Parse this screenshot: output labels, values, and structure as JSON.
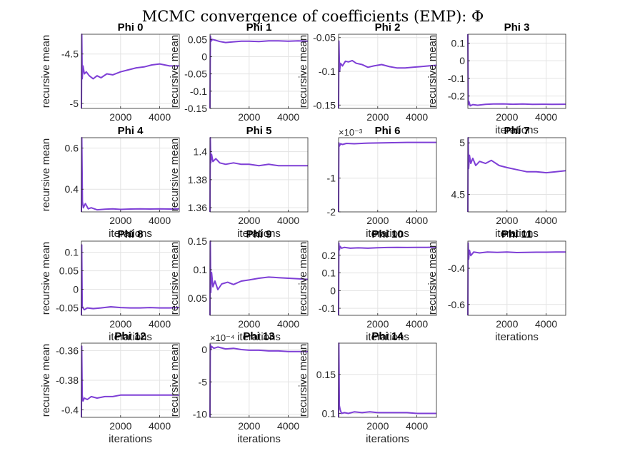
{
  "figure": {
    "suptitle": "MCMC convergence of coefficients (EMP): Φ",
    "line_color": "#7e3fd6"
  },
  "chart_data": [
    {
      "type": "line",
      "title": "Phi 0",
      "xlabel": "",
      "ylabel": "recursive mean",
      "xlim": [
        0,
        5000
      ],
      "ylim": [
        -5.05,
        -4.3
      ],
      "xticks": [
        2000,
        4000
      ],
      "yticks": [
        -5,
        -4.5
      ],
      "ytick_labels": [
        "-5",
        "-4.5"
      ],
      "exponent": "",
      "grid": true,
      "series": [
        {
          "x": [
            0,
            20,
            40,
            80,
            150,
            250,
            400,
            600,
            800,
            1000,
            1300,
            1600,
            2000,
            2400,
            2800,
            3200,
            3600,
            4000,
            4500,
            5000
          ],
          "y": [
            -5.05,
            -4.3,
            -4.75,
            -4.62,
            -4.7,
            -4.68,
            -4.72,
            -4.75,
            -4.72,
            -4.74,
            -4.7,
            -4.71,
            -4.68,
            -4.66,
            -4.64,
            -4.63,
            -4.61,
            -4.6,
            -4.62,
            -4.62
          ]
        }
      ]
    },
    {
      "type": "line",
      "title": "Phi 1",
      "xlabel": "",
      "ylabel": "recursive mean",
      "xlim": [
        0,
        5000
      ],
      "ylim": [
        -0.15,
        0.065
      ],
      "xticks": [
        2000,
        4000
      ],
      "yticks": [
        -0.15,
        -0.1,
        -0.05,
        0,
        0.05
      ],
      "ytick_labels": [
        "-0.15",
        "-0.1",
        "-0.05",
        "0",
        "0.05"
      ],
      "exponent": "",
      "grid": true,
      "series": [
        {
          "x": [
            0,
            20,
            60,
            120,
            250,
            500,
            800,
            1200,
            1600,
            2000,
            2500,
            3000,
            3500,
            4000,
            4500,
            5000
          ],
          "y": [
            -0.15,
            0.06,
            0.045,
            0.05,
            0.048,
            0.044,
            0.041,
            0.043,
            0.045,
            0.045,
            0.044,
            0.046,
            0.046,
            0.045,
            0.046,
            0.045
          ]
        }
      ]
    },
    {
      "type": "line",
      "title": "Phi 2",
      "xlabel": "",
      "ylabel": "recursive mean",
      "xlim": [
        0,
        5000
      ],
      "ylim": [
        -0.155,
        -0.045
      ],
      "xticks": [
        2000,
        4000
      ],
      "yticks": [
        -0.15,
        -0.1,
        -0.05
      ],
      "ytick_labels": [
        "-0.15",
        "-0.1",
        "-0.05"
      ],
      "exponent": "",
      "grid": true,
      "series": [
        {
          "x": [
            0,
            20,
            50,
            100,
            200,
            350,
            500,
            700,
            900,
            1200,
            1500,
            1800,
            2200,
            2600,
            3000,
            3400,
            3800,
            4200,
            4600,
            5000
          ],
          "y": [
            -0.155,
            -0.055,
            -0.1,
            -0.088,
            -0.092,
            -0.085,
            -0.086,
            -0.084,
            -0.088,
            -0.09,
            -0.094,
            -0.092,
            -0.09,
            -0.093,
            -0.095,
            -0.095,
            -0.094,
            -0.093,
            -0.092,
            -0.091
          ]
        }
      ]
    },
    {
      "type": "line",
      "title": "Phi 3",
      "xlabel": "iterations",
      "ylabel": "recursive mean",
      "xlim": [
        0,
        5000
      ],
      "ylim": [
        -0.27,
        0.15
      ],
      "xticks": [
        2000,
        4000
      ],
      "yticks": [
        -0.2,
        -0.1,
        0,
        0.1
      ],
      "ytick_labels": [
        "-0.2",
        "-0.1",
        "0",
        "0.1"
      ],
      "exponent": "",
      "grid": true,
      "series": [
        {
          "x": [
            0,
            20,
            50,
            120,
            250,
            500,
            900,
            1300,
            1800,
            2300,
            2800,
            3300,
            3800,
            4300,
            5000
          ],
          "y": [
            0.15,
            -0.25,
            -0.23,
            -0.255,
            -0.248,
            -0.252,
            -0.247,
            -0.245,
            -0.244,
            -0.246,
            -0.245,
            -0.247,
            -0.246,
            -0.247,
            -0.246
          ]
        }
      ]
    },
    {
      "type": "line",
      "title": "Phi 4",
      "xlabel": "iterations",
      "ylabel": "recursive mean",
      "xlim": [
        0,
        5000
      ],
      "ylim": [
        0.29,
        0.65
      ],
      "xticks": [
        2000,
        4000
      ],
      "yticks": [
        0.4,
        0.6
      ],
      "ytick_labels": [
        "0.4",
        "0.6"
      ],
      "exponent": "",
      "grid": true,
      "series": [
        {
          "x": [
            0,
            20,
            50,
            100,
            200,
            350,
            500,
            800,
            1200,
            1600,
            2000,
            2500,
            3000,
            3500,
            4000,
            4500,
            5000
          ],
          "y": [
            0.29,
            0.65,
            0.34,
            0.31,
            0.33,
            0.305,
            0.31,
            0.3,
            0.303,
            0.305,
            0.302,
            0.304,
            0.305,
            0.304,
            0.305,
            0.304,
            0.305
          ]
        }
      ]
    },
    {
      "type": "line",
      "title": "Phi 5",
      "xlabel": "iterations",
      "ylabel": "recursive mean",
      "xlim": [
        0,
        5000
      ],
      "ylim": [
        1.357,
        1.41
      ],
      "xticks": [
        2000,
        4000
      ],
      "yticks": [
        1.36,
        1.38,
        1.4
      ],
      "ytick_labels": [
        "1.36",
        "1.38",
        "1.4"
      ],
      "exponent": "",
      "grid": true,
      "series": [
        {
          "x": [
            0,
            15,
            40,
            80,
            150,
            300,
            500,
            800,
            1200,
            1600,
            2000,
            2500,
            3000,
            3500,
            4000,
            4500,
            5000
          ],
          "y": [
            1.357,
            1.41,
            1.392,
            1.398,
            1.393,
            1.395,
            1.392,
            1.391,
            1.392,
            1.391,
            1.391,
            1.39,
            1.391,
            1.39,
            1.39,
            1.39,
            1.39
          ]
        }
      ]
    },
    {
      "type": "line",
      "title": "Phi 6",
      "xlabel": "iterations",
      "ylabel": "",
      "xlim": [
        0,
        5000
      ],
      "ylim": [
        -2,
        0.2
      ],
      "xticks": [
        2000,
        4000
      ],
      "yticks": [
        -2,
        -1
      ],
      "ytick_labels": [
        "-2",
        "-1"
      ],
      "exponent": "×10⁻³",
      "grid": true,
      "series": [
        {
          "x": [
            0,
            15,
            40,
            100,
            200,
            400,
            800,
            1500,
            2500,
            3500,
            5000
          ],
          "y": [
            -2,
            0.05,
            -0.05,
            0.02,
            0,
            0.03,
            0.02,
            0.04,
            0.05,
            0.06,
            0.06
          ]
        }
      ]
    },
    {
      "type": "line",
      "title": "Phi 7",
      "xlabel": "iterations",
      "ylabel": "",
      "xlim": [
        0,
        5000
      ],
      "ylim": [
        4.33,
        5.05
      ],
      "xticks": [
        2000,
        4000
      ],
      "yticks": [
        4.5,
        5
      ],
      "ytick_labels": [
        "4.5",
        "5"
      ],
      "exponent": "",
      "grid": true,
      "series": [
        {
          "x": [
            0,
            15,
            40,
            80,
            150,
            250,
            400,
            600,
            900,
            1200,
            1600,
            2000,
            2500,
            3000,
            3500,
            4000,
            4500,
            5000
          ],
          "y": [
            4.33,
            5.05,
            4.75,
            4.88,
            4.8,
            4.85,
            4.78,
            4.82,
            4.8,
            4.83,
            4.78,
            4.76,
            4.74,
            4.72,
            4.72,
            4.71,
            4.72,
            4.73
          ]
        }
      ]
    },
    {
      "type": "line",
      "title": "Phi 8",
      "xlabel": "iterations",
      "ylabel": "recursive mean",
      "xlim": [
        0,
        5000
      ],
      "ylim": [
        -0.07,
        0.13
      ],
      "xticks": [
        2000,
        4000
      ],
      "yticks": [
        -0.05,
        0,
        0.05,
        0.1
      ],
      "ytick_labels": [
        "-0.05",
        "0",
        "0.05",
        "0.1"
      ],
      "exponent": "",
      "grid": true,
      "series": [
        {
          "x": [
            0,
            15,
            40,
            80,
            150,
            300,
            600,
            1000,
            1500,
            2000,
            2500,
            3000,
            3500,
            4000,
            4500,
            5000
          ],
          "y": [
            -0.07,
            0.12,
            -0.045,
            -0.05,
            -0.055,
            -0.05,
            -0.052,
            -0.05,
            -0.047,
            -0.049,
            -0.05,
            -0.05,
            -0.049,
            -0.05,
            -0.05,
            -0.049
          ]
        }
      ]
    },
    {
      "type": "line",
      "title": "Phi 9",
      "xlabel": "iterations",
      "ylabel": "recursive mean",
      "xlim": [
        0,
        5000
      ],
      "ylim": [
        0.02,
        0.15
      ],
      "xticks": [
        2000,
        4000
      ],
      "yticks": [
        0.05,
        0.1,
        0.15
      ],
      "ytick_labels": [
        "0.05",
        "0.1",
        "0.15"
      ],
      "exponent": "",
      "grid": true,
      "series": [
        {
          "x": [
            0,
            15,
            40,
            80,
            150,
            250,
            400,
            600,
            900,
            1200,
            1600,
            2000,
            2500,
            3000,
            3500,
            4000,
            4500,
            5000
          ],
          "y": [
            0.02,
            0.15,
            0.06,
            0.095,
            0.07,
            0.08,
            0.065,
            0.075,
            0.078,
            0.074,
            0.08,
            0.082,
            0.085,
            0.087,
            0.086,
            0.085,
            0.084,
            0.083
          ]
        }
      ]
    },
    {
      "type": "line",
      "title": "Phi 10",
      "xlabel": "iterations",
      "ylabel": "recursive mean",
      "xlim": [
        0,
        5000
      ],
      "ylim": [
        -0.14,
        0.28
      ],
      "xticks": [
        2000,
        4000
      ],
      "yticks": [
        -0.1,
        0,
        0.1,
        0.2
      ],
      "ytick_labels": [
        "-0.1",
        "0",
        "0.1",
        "0.2"
      ],
      "exponent": "",
      "grid": true,
      "series": [
        {
          "x": [
            0,
            15,
            40,
            80,
            150,
            300,
            600,
            1000,
            1500,
            2000,
            2500,
            3000,
            3500,
            4000,
            4500,
            5000
          ],
          "y": [
            -0.14,
            0.27,
            0.23,
            0.25,
            0.24,
            0.245,
            0.24,
            0.242,
            0.24,
            0.243,
            0.244,
            0.245,
            0.244,
            0.245,
            0.245,
            0.246
          ]
        }
      ]
    },
    {
      "type": "line",
      "title": "Phi 11",
      "xlabel": "iterations",
      "ylabel": "recursive mean",
      "xlim": [
        0,
        5000
      ],
      "ylim": [
        -0.66,
        -0.25
      ],
      "xticks": [
        2000,
        4000
      ],
      "yticks": [
        -0.6,
        -0.4
      ],
      "ytick_labels": [
        "-0.6",
        "-0.4"
      ],
      "exponent": "",
      "grid": true,
      "series": [
        {
          "x": [
            0,
            15,
            40,
            80,
            150,
            300,
            600,
            1000,
            1500,
            2000,
            2500,
            3000,
            3500,
            4000,
            4500,
            5000
          ],
          "y": [
            -0.66,
            -0.26,
            -0.35,
            -0.3,
            -0.33,
            -0.31,
            -0.315,
            -0.31,
            -0.312,
            -0.31,
            -0.313,
            -0.312,
            -0.311,
            -0.311,
            -0.31,
            -0.31
          ]
        }
      ]
    },
    {
      "type": "line",
      "title": "Phi 12",
      "xlabel": "iterations",
      "ylabel": "recursive mean",
      "xlim": [
        0,
        5000
      ],
      "ylim": [
        -0.405,
        -0.355
      ],
      "xticks": [
        2000,
        4000
      ],
      "yticks": [
        -0.4,
        -0.38,
        -0.36
      ],
      "ytick_labels": [
        "-0.4",
        "-0.38",
        "-0.36"
      ],
      "exponent": "",
      "grid": true,
      "series": [
        {
          "x": [
            0,
            15,
            40,
            80,
            150,
            300,
            500,
            800,
            1200,
            1600,
            2000,
            2500,
            3000,
            3500,
            4000,
            4500,
            5000
          ],
          "y": [
            -0.405,
            -0.357,
            -0.39,
            -0.394,
            -0.392,
            -0.393,
            -0.391,
            -0.392,
            -0.391,
            -0.391,
            -0.39,
            -0.39,
            -0.39,
            -0.39,
            -0.39,
            -0.39,
            -0.39
          ]
        }
      ]
    },
    {
      "type": "line",
      "title": "Phi 13",
      "xlabel": "iterations",
      "ylabel": "recursive mean",
      "xlim": [
        0,
        5000
      ],
      "ylim": [
        -10.5,
        1
      ],
      "xticks": [
        2000,
        4000
      ],
      "yticks": [
        -10,
        -5,
        0
      ],
      "ytick_labels": [
        "-10",
        "-5",
        "0"
      ],
      "exponent": "×10⁻⁴",
      "grid": true,
      "series": [
        {
          "x": [
            0,
            15,
            40,
            80,
            200,
            400,
            800,
            1200,
            1600,
            2000,
            2500,
            3000,
            3500,
            4000,
            4500,
            5000
          ],
          "y": [
            -10.5,
            0.8,
            0,
            0.5,
            0.2,
            0.4,
            0.1,
            0.2,
            0,
            -0.1,
            -0.1,
            -0.2,
            -0.2,
            -0.3,
            -0.3,
            -0.3
          ]
        }
      ]
    },
    {
      "type": "line",
      "title": "Phi 14",
      "xlabel": "iterations",
      "ylabel": "recursive mean",
      "xlim": [
        0,
        5000
      ],
      "ylim": [
        0.095,
        0.19
      ],
      "xticks": [
        2000,
        4000
      ],
      "yticks": [
        0.1,
        0.15
      ],
      "ytick_labels": [
        "0.1",
        "0.15"
      ],
      "exponent": "",
      "grid": true,
      "series": [
        {
          "x": [
            0,
            15,
            40,
            80,
            150,
            300,
            500,
            800,
            1200,
            1600,
            2000,
            2500,
            3000,
            3500,
            4000,
            4500,
            5000
          ],
          "y": [
            0.095,
            0.19,
            0.11,
            0.105,
            0.1,
            0.101,
            0.1,
            0.102,
            0.101,
            0.102,
            0.101,
            0.101,
            0.101,
            0.101,
            0.1,
            0.1,
            0.1
          ]
        }
      ]
    }
  ]
}
